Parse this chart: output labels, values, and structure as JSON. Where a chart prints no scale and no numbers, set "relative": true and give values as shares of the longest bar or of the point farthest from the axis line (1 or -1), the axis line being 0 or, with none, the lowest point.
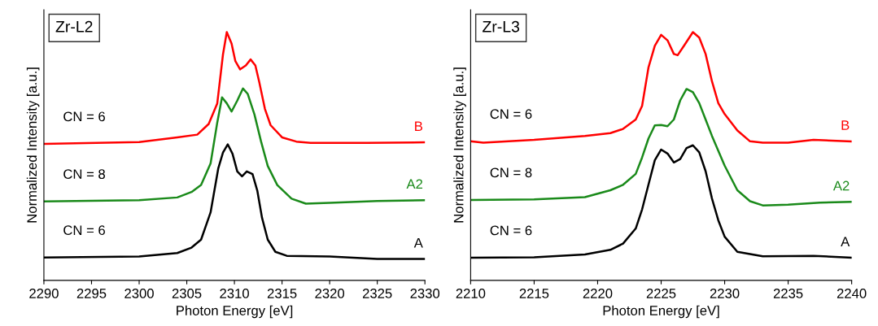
{
  "chart_data": [
    {
      "type": "line",
      "title": "Zr-L2",
      "xlabel": "Photon Energy [eV]",
      "ylabel": "Normalized Intensity [a.u.]",
      "relative": true,
      "xlim": [
        2290,
        2330
      ],
      "xticks": [
        2290,
        2295,
        2300,
        2305,
        2310,
        2315,
        2320,
        2325,
        2330
      ],
      "grid": false,
      "legend": false,
      "marker": "none",
      "line_style": "solid",
      "annotations": [
        "CN = 6",
        "CN = 8",
        "CN = 6"
      ],
      "series": [
        {
          "name": "B",
          "color": "#ff0000",
          "x": [
            2290,
            2300,
            2304,
            2306.1,
            2307.3,
            2308.2,
            2308.8,
            2309.2,
            2309.7,
            2310.1,
            2310.6,
            2311.2,
            2311.7,
            2312.2,
            2312.6,
            2313.2,
            2313.8,
            2315,
            2316.5,
            2318,
            2323.9,
            2330
          ],
          "values": [
            0.55,
            0.557,
            0.576,
            0.587,
            0.63,
            0.713,
            0.91,
            1.0,
            0.954,
            0.883,
            0.85,
            0.866,
            0.89,
            0.866,
            0.8,
            0.691,
            0.625,
            0.576,
            0.559,
            0.554,
            0.554,
            0.556
          ]
        },
        {
          "name": "A2",
          "color": "#1a8a1a",
          "x": [
            2290,
            2300,
            2304,
            2305.5,
            2306.5,
            2307.5,
            2308.2,
            2308.7,
            2309.2,
            2309.7,
            2310.3,
            2310.9,
            2311.4,
            2312.1,
            2312.8,
            2313.5,
            2314.5,
            2316,
            2317.5,
            2320,
            2325,
            2330
          ],
          "values": [
            0.318,
            0.323,
            0.334,
            0.356,
            0.384,
            0.471,
            0.636,
            0.737,
            0.713,
            0.68,
            0.724,
            0.773,
            0.751,
            0.669,
            0.559,
            0.461,
            0.384,
            0.329,
            0.309,
            0.312,
            0.32,
            0.323
          ]
        },
        {
          "name": "A",
          "color": "#000000",
          "x": [
            2290,
            2300,
            2304,
            2305.5,
            2306.5,
            2307.5,
            2308.3,
            2308.8,
            2309.3,
            2309.8,
            2310.3,
            2310.8,
            2311.3,
            2311.9,
            2312.4,
            2312.9,
            2313.5,
            2314.3,
            2315.5,
            2320,
            2325,
            2330
          ],
          "values": [
            0.092,
            0.096,
            0.11,
            0.132,
            0.164,
            0.274,
            0.45,
            0.515,
            0.548,
            0.51,
            0.439,
            0.419,
            0.439,
            0.428,
            0.362,
            0.252,
            0.164,
            0.115,
            0.099,
            0.096,
            0.086,
            0.086
          ]
        }
      ]
    },
    {
      "type": "line",
      "title": "Zr-L3",
      "xlabel": "Photon Energy [eV]",
      "ylabel": "Normalized Intensity [a.u.]",
      "relative": true,
      "xlim": [
        2210,
        2240
      ],
      "xticks": [
        2210,
        2215,
        2220,
        2225,
        2230,
        2235,
        2240
      ],
      "grid": false,
      "legend": false,
      "marker": "none",
      "line_style": "solid",
      "annotations": [
        "CN = 6",
        "CN = 8",
        "CN = 6"
      ],
      "series": [
        {
          "name": "B",
          "color": "#ff0000",
          "x": [
            2210,
            2211,
            2215,
            2219,
            2221,
            2222,
            2223,
            2223.5,
            2224,
            2224.5,
            2225,
            2225.5,
            2226,
            2226.3,
            2226.8,
            2227.5,
            2228,
            2228.5,
            2229,
            2229.5,
            2230,
            2231,
            2232,
            2233,
            2235,
            2237,
            2240
          ],
          "values": [
            0.56,
            0.555,
            0.566,
            0.582,
            0.593,
            0.61,
            0.648,
            0.703,
            0.857,
            0.945,
            0.989,
            0.967,
            0.912,
            0.907,
            0.945,
            1.0,
            0.978,
            0.912,
            0.802,
            0.714,
            0.67,
            0.604,
            0.56,
            0.555,
            0.555,
            0.566,
            0.56
          ]
        },
        {
          "name": "A2",
          "color": "#1a8a1a",
          "x": [
            2210,
            2215,
            2219,
            2221,
            2222,
            2223,
            2223.5,
            2224,
            2224.5,
            2225,
            2225.5,
            2226,
            2226.5,
            2227,
            2227.5,
            2228,
            2228.5,
            2229,
            2230,
            2231,
            2232,
            2233,
            2235,
            2237.5,
            2240
          ],
          "values": [
            0.324,
            0.326,
            0.335,
            0.363,
            0.385,
            0.429,
            0.495,
            0.571,
            0.624,
            0.626,
            0.621,
            0.648,
            0.725,
            0.771,
            0.758,
            0.714,
            0.648,
            0.582,
            0.462,
            0.363,
            0.319,
            0.302,
            0.305,
            0.313,
            0.316
          ]
        },
        {
          "name": "A",
          "color": "#000000",
          "x": [
            2210,
            2215,
            2219,
            2221,
            2222,
            2223,
            2223.5,
            2224,
            2224.5,
            2225,
            2225.5,
            2226,
            2226.5,
            2227,
            2227.5,
            2228,
            2228.5,
            2229,
            2229.5,
            2230,
            2231,
            2233,
            2237,
            2240
          ],
          "values": [
            0.091,
            0.093,
            0.104,
            0.123,
            0.148,
            0.209,
            0.286,
            0.385,
            0.484,
            0.527,
            0.511,
            0.475,
            0.489,
            0.533,
            0.544,
            0.516,
            0.44,
            0.33,
            0.242,
            0.176,
            0.115,
            0.097,
            0.099,
            0.091
          ]
        }
      ]
    }
  ]
}
